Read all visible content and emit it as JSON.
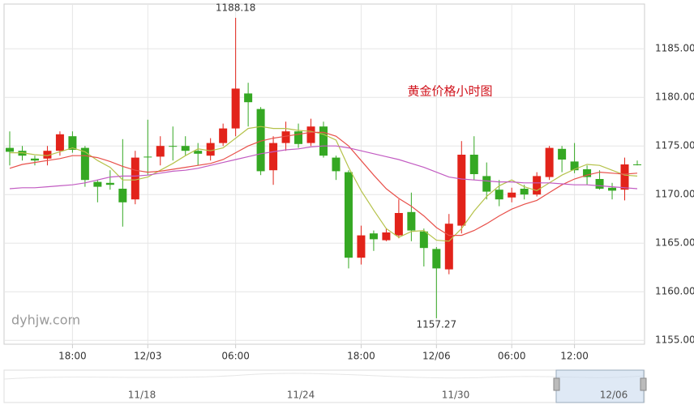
{
  "chart_data": {
    "type": "candlestick",
    "title": "黄金价格小时图",
    "watermark": "dyhjw.com",
    "categories": [
      null,
      null,
      null,
      null,
      null,
      "18:00",
      null,
      null,
      null,
      null,
      null,
      "12/03",
      null,
      null,
      null,
      null,
      null,
      null,
      "06:00",
      null,
      null,
      null,
      null,
      null,
      null,
      null,
      null,
      null,
      "18:00",
      null,
      null,
      null,
      null,
      null,
      "12/06",
      null,
      null,
      null,
      null,
      null,
      "06:00",
      null,
      null,
      null,
      null,
      "12:00",
      null,
      null,
      null,
      null,
      null
    ],
    "open": [
      1174.8,
      1174.5,
      1173.7,
      1173.7,
      1174.5,
      1176.0,
      1174.8,
      1171.3,
      1171.2,
      1170.6,
      1169.5,
      1173.9,
      1173.9,
      1175.0,
      1175.0,
      1174.5,
      1174.0,
      1175.3,
      1176.8,
      1180.4,
      1178.8,
      1172.5,
      1175.3,
      1176.5,
      1175.3,
      1177.0,
      1173.8,
      1172.3,
      1163.5,
      1166.0,
      1165.3,
      1165.8,
      1168.2,
      1166.2,
      1164.4,
      1162.3,
      1166.8,
      1174.1,
      1171.9,
      1170.5,
      1169.7,
      1170.6,
      1170.0,
      1171.8,
      1174.7,
      1173.4,
      1172.6,
      1171.6,
      1170.7,
      1170.5,
      1173.1
    ],
    "high": [
      1176.5,
      1175,
      1174,
      1175,
      1176.5,
      1176.5,
      1175,
      1171.5,
      1172.5,
      1175.7,
      1174.5,
      1177.7,
      1176,
      1177,
      1176,
      1175.3,
      1175.8,
      1177.3,
      1188.18,
      1181.5,
      1179,
      1176,
      1177.5,
      1177.3,
      1177.8,
      1177.5,
      1174,
      1172.5,
      1166.8,
      1166.3,
      1166.5,
      1169.5,
      1170.2,
      1166.5,
      1164.6,
      1168,
      1175.5,
      1176,
      1173.3,
      1171.5,
      1170.7,
      1171,
      1172.3,
      1175,
      1175,
      1175.3,
      1173,
      1172.5,
      1171.2,
      1173.8,
      1173.5
    ],
    "low": [
      1173,
      1173.5,
      1173,
      1173,
      1174,
      1174.3,
      1170.8,
      1169.2,
      1170.5,
      1166.7,
      1169,
      1172,
      1173,
      1173.5,
      1174,
      1173,
      1173.5,
      1175,
      1176,
      1177,
      1172,
      1171,
      1174.5,
      1174.8,
      1175,
      1173.8,
      1171.5,
      1162.4,
      1162.8,
      1164.2,
      1165.2,
      1165.5,
      1165.2,
      1162.6,
      1157.27,
      1161.8,
      1166,
      1171.5,
      1169.5,
      1168.8,
      1169.2,
      1169.5,
      1169.8,
      1171.5,
      1172.3,
      1172.2,
      1171,
      1170.5,
      1169.5,
      1169.4,
      1173
    ],
    "close": [
      1174.4,
      1174.0,
      1173.5,
      1174.5,
      1176.2,
      1174.6,
      1171.5,
      1170.8,
      1171.0,
      1169.2,
      1173.8,
      1173.9,
      1175.0,
      1175.0,
      1174.5,
      1174.2,
      1175.3,
      1176.8,
      1180.9,
      1179.5,
      1172.4,
      1175.3,
      1176.5,
      1175.2,
      1177.0,
      1174.0,
      1172.4,
      1163.5,
      1165.8,
      1165.4,
      1166.1,
      1168.1,
      1166.3,
      1164.5,
      1162.4,
      1167.0,
      1174.1,
      1172.1,
      1170.3,
      1169.5,
      1170.2,
      1170.0,
      1171.9,
      1174.8,
      1173.6,
      1172.5,
      1171.8,
      1170.6,
      1170.4,
      1173.1,
      1173.1
    ],
    "up_color": "#e2231a",
    "down_color": "#35a823",
    "lines": [
      {
        "color": "#b5c24a",
        "values": [
          1174.3,
          1174.3,
          1174.1,
          1174.0,
          1174.4,
          1174.8,
          1174.4,
          1173.5,
          1172.8,
          1171.5,
          1171.5,
          1171.8,
          1172.5,
          1173.2,
          1174.0,
          1174.7,
          1174.5,
          1174.8,
          1175.8,
          1176.8,
          1177.0,
          1176.8,
          1176.8,
          1176.6,
          1176.5,
          1176.2,
          1175.6,
          1172.8,
          1170.4,
          1168.4,
          1166.5,
          1165.6,
          1166.2,
          1166.3,
          1165.3,
          1165.2,
          1166.5,
          1168.3,
          1169.8,
          1170.9,
          1171.5,
          1170.8,
          1170.4,
          1171.2,
          1172.0,
          1172.6,
          1173.1,
          1173.0,
          1172.5,
          1172.0,
          1171.9
        ]
      },
      {
        "color": "#e8504a",
        "values": [
          1172.7,
          1173.1,
          1173.3,
          1173.5,
          1173.7,
          1174.0,
          1174.0,
          1173.8,
          1173.4,
          1172.9,
          1172.5,
          1172.3,
          1172.4,
          1172.6,
          1172.8,
          1173.0,
          1173.2,
          1173.6,
          1174.3,
          1175.0,
          1175.5,
          1175.8,
          1176.0,
          1176.2,
          1176.4,
          1176.4,
          1176.0,
          1175.0,
          1173.5,
          1172.0,
          1170.6,
          1169.6,
          1168.8,
          1167.8,
          1166.6,
          1165.8,
          1165.8,
          1166.3,
          1167.0,
          1167.8,
          1168.5,
          1169.0,
          1169.4,
          1170.2,
          1171.0,
          1171.6,
          1172.0,
          1172.3,
          1172.2,
          1172.1,
          1172.2
        ]
      },
      {
        "color": "#c25bc2",
        "values": [
          1170.6,
          1170.7,
          1170.7,
          1170.8,
          1170.9,
          1171.0,
          1171.2,
          1171.5,
          1171.8,
          1171.9,
          1171.9,
          1172.0,
          1172.2,
          1172.4,
          1172.5,
          1172.7,
          1173.0,
          1173.3,
          1173.6,
          1173.9,
          1174.2,
          1174.4,
          1174.6,
          1174.7,
          1174.9,
          1175.0,
          1175.0,
          1174.8,
          1174.5,
          1174.2,
          1173.9,
          1173.6,
          1173.2,
          1172.8,
          1172.3,
          1171.8,
          1171.6,
          1171.5,
          1171.4,
          1171.3,
          1171.3,
          1171.2,
          1171.2,
          1171.2,
          1171.1,
          1171.0,
          1171.0,
          1170.9,
          1170.8,
          1170.7,
          1170.6
        ]
      }
    ],
    "ylim": [
      1154.6,
      1189.6
    ],
    "yticks": [
      {
        "value": 1155,
        "label": "1155.00"
      },
      {
        "value": 1160,
        "label": "1160.00"
      },
      {
        "value": 1165,
        "label": "1165.00"
      },
      {
        "value": 1170,
        "label": "1170.00"
      },
      {
        "value": 1175,
        "label": "1175.00"
      },
      {
        "value": 1180,
        "label": "1180.00"
      },
      {
        "value": 1185,
        "label": "1185.00"
      }
    ],
    "grid": true,
    "max_index": 18,
    "min_index": 34,
    "navigator": {
      "labels": [
        "11/18",
        "11/24",
        "11/30",
        "12/06"
      ]
    }
  }
}
